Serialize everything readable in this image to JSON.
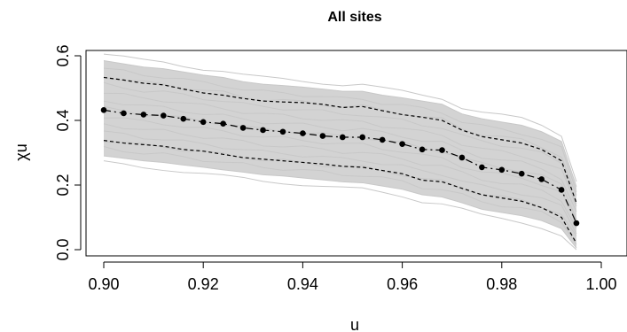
{
  "chart_data": {
    "type": "line",
    "title": "All sites",
    "xlabel": "u",
    "ylabel": "χu",
    "xlim": [
      0.9,
      1.0
    ],
    "ylim": [
      0.0,
      0.6
    ],
    "xticks": [
      0.9,
      0.92,
      0.94,
      0.96,
      0.98,
      1.0
    ],
    "xtick_labels": [
      "0.90",
      "0.92",
      "0.94",
      "0.96",
      "0.98",
      "1.00"
    ],
    "yticks": [
      0.0,
      0.2,
      0.4,
      0.6
    ],
    "ytick_labels": [
      "0.0",
      "0.2",
      "0.4",
      "0.6"
    ],
    "grid": false,
    "x": [
      0.9,
      0.904,
      0.908,
      0.912,
      0.916,
      0.92,
      0.924,
      0.928,
      0.932,
      0.936,
      0.94,
      0.944,
      0.948,
      0.952,
      0.956,
      0.96,
      0.964,
      0.968,
      0.972,
      0.976,
      0.98,
      0.984,
      0.988,
      0.992,
      0.995
    ],
    "series": [
      {
        "style": "points-dashdot",
        "values": [
          0.432,
          0.422,
          0.418,
          0.415,
          0.405,
          0.395,
          0.39,
          0.377,
          0.37,
          0.365,
          0.36,
          0.352,
          0.348,
          0.348,
          0.34,
          0.327,
          0.31,
          0.308,
          0.285,
          0.255,
          0.247,
          0.235,
          0.218,
          0.185,
          0.082
        ]
      },
      {
        "style": "dashed-upper",
        "values": [
          0.533,
          0.525,
          0.515,
          0.51,
          0.497,
          0.485,
          0.478,
          0.468,
          0.46,
          0.457,
          0.455,
          0.45,
          0.44,
          0.443,
          0.43,
          0.418,
          0.41,
          0.4,
          0.37,
          0.35,
          0.34,
          0.33,
          0.31,
          0.275,
          0.145
        ]
      },
      {
        "style": "dashed-lower",
        "values": [
          0.338,
          0.33,
          0.325,
          0.32,
          0.31,
          0.305,
          0.295,
          0.285,
          0.28,
          0.275,
          0.27,
          0.265,
          0.258,
          0.255,
          0.245,
          0.235,
          0.215,
          0.21,
          0.19,
          0.17,
          0.16,
          0.15,
          0.13,
          0.1,
          0.02
        ]
      }
    ],
    "band": {
      "upper": [
        0.585,
        0.575,
        0.565,
        0.56,
        0.55,
        0.54,
        0.533,
        0.52,
        0.512,
        0.508,
        0.503,
        0.497,
        0.49,
        0.49,
        0.478,
        0.47,
        0.46,
        0.45,
        0.42,
        0.405,
        0.395,
        0.385,
        0.365,
        0.335,
        0.195
      ],
      "lower": [
        0.29,
        0.283,
        0.275,
        0.27,
        0.262,
        0.255,
        0.247,
        0.24,
        0.232,
        0.228,
        0.222,
        0.216,
        0.21,
        0.207,
        0.197,
        0.187,
        0.17,
        0.163,
        0.145,
        0.125,
        0.115,
        0.105,
        0.09,
        0.065,
        0.005
      ]
    },
    "colors": {
      "band": "#d3d3d3",
      "thin_lines": "#c8c8c8",
      "main": "#000000"
    }
  }
}
